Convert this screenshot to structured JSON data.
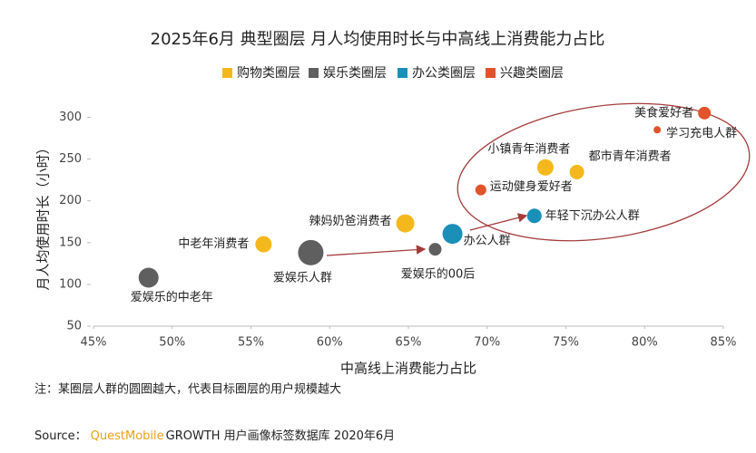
{
  "chart_data": {
    "type": "bubble",
    "title": "2025年6月 典型圈层 月人均使用时长与中高线上消费能力占比",
    "xlabel": "中高线上消费能力占比",
    "ylabel": "月人均使用时长（小时）",
    "note": "注：某圈层人群的圆圈越大，代表目标圈层的用户规模越大",
    "source": {
      "prefix": "Source：",
      "brand": "QuestMobile",
      "text": "GROWTH 用户画像标签数据库 2020年6月"
    },
    "xlim": [
      45,
      85
    ],
    "xticks": [
      {
        "value": 45,
        "label": "45%"
      },
      {
        "value": 50,
        "label": "50%"
      },
      {
        "value": 55,
        "label": "55%"
      },
      {
        "value": 60,
        "label": "60%"
      },
      {
        "value": 65,
        "label": "65%"
      },
      {
        "value": 70,
        "label": "70%"
      },
      {
        "value": 75,
        "label": "75%"
      },
      {
        "value": 80,
        "label": "80%"
      },
      {
        "value": 85,
        "label": "85%"
      }
    ],
    "ylim": [
      50,
      320
    ],
    "yticks": [
      50,
      100,
      150,
      200,
      250,
      300
    ],
    "series": [
      {
        "name": "购物类圈层",
        "color": "#f5b81c",
        "points": [
          {
            "label": "中老年消费者",
            "x": 55.8,
            "y": 148,
            "size": 9
          },
          {
            "label": "辣妈奶爸消费者",
            "x": 64.8,
            "y": 173,
            "size": 10
          },
          {
            "label": "小镇青年消费者",
            "x": 73.7,
            "y": 240,
            "size": 9
          },
          {
            "label": "都市青年消费者",
            "x": 75.7,
            "y": 234.5,
            "size": 8
          }
        ]
      },
      {
        "name": "娱乐类圈层",
        "color": "#5f5f5f",
        "points": [
          {
            "label": "爱娱乐的中老年",
            "x": 48.5,
            "y": 108,
            "size": 11
          },
          {
            "label": "爱娱乐人群",
            "x": 58.8,
            "y": 138,
            "size": 14
          },
          {
            "label": "爱娱乐的00后",
            "x": 66.7,
            "y": 142,
            "size": 7
          }
        ]
      },
      {
        "name": "办公类圈层",
        "color": "#1a8fb8",
        "points": [
          {
            "label": "办公人群",
            "x": 67.8,
            "y": 160.5,
            "size": 11
          },
          {
            "label": "年轻下沉办公人群",
            "x": 73,
            "y": 182,
            "size": 8
          }
        ]
      },
      {
        "name": "兴趣类圈层",
        "color": "#e0532b",
        "points": [
          {
            "label": "运动健身爱好者",
            "x": 69.6,
            "y": 213,
            "size": 6
          },
          {
            "label": "美食爱好者",
            "x": 83.8,
            "y": 305,
            "size": 7
          },
          {
            "label": "学习充电人群",
            "x": 80.8,
            "y": 285,
            "size": 4
          }
        ]
      }
    ]
  }
}
